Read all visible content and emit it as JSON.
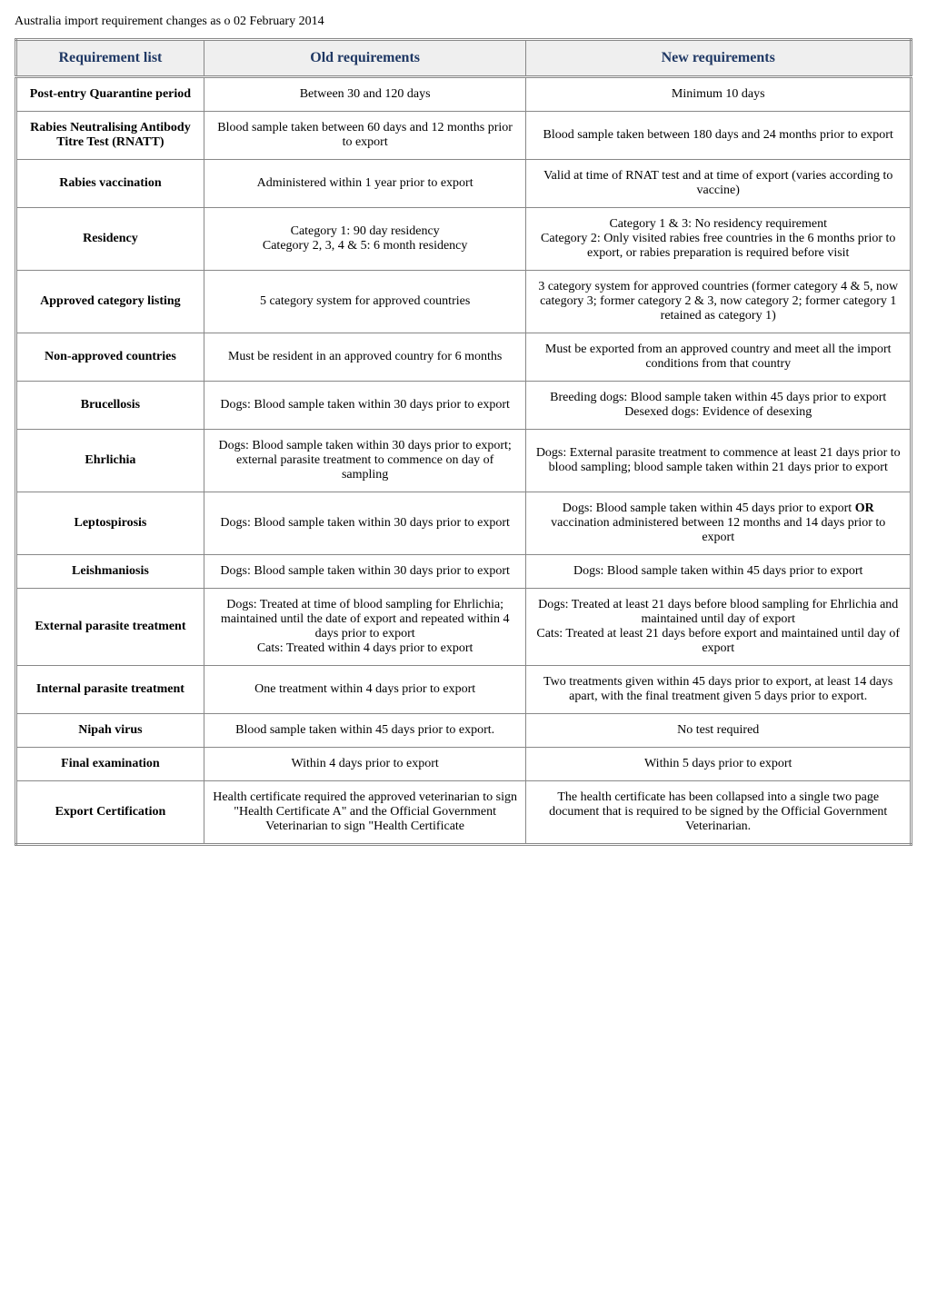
{
  "page_title": "Australia import requirement changes as o 02 February 2014",
  "columns": {
    "c0": "Requirement list",
    "c1": "Old requirements",
    "c2": "New requirements"
  },
  "rows": [
    {
      "name": "Post-entry Quarantine period",
      "old": "Between 30 and 120 days",
      "new": "Minimum 10 days"
    },
    {
      "name": "Rabies Neutralising Antibody Titre Test (RNATT)",
      "old": "Blood sample taken between 60 days and 12 months prior to export",
      "new": "Blood sample taken between 180 days and 24 months prior to export"
    },
    {
      "name": "Rabies vaccination",
      "old": "Administered within 1 year prior to export",
      "new": "Valid at time of RNAT test and at time of export (varies according to vaccine)"
    },
    {
      "name": "Residency",
      "old": "Category 1: 90 day residency\nCategory 2, 3, 4 & 5: 6 month residency",
      "new": "Category 1 & 3: No residency requirement\nCategory 2: Only visited rabies free countries in the 6 months prior to export, or rabies preparation is required before visit"
    },
    {
      "name": "Approved category listing",
      "old": "5 category system for approved countries ",
      "new": "3 category system for approved countries (former category 4 & 5, now category 3; former category 2 & 3, now category 2; former category 1 retained as category 1) "
    },
    {
      "name": "Non-approved countries",
      "old": "Must be resident in an approved country for 6 months",
      "new": "Must be exported from an approved country and meet all the import conditions from that country"
    },
    {
      "name": "Brucellosis",
      "old": "Dogs: Blood sample taken within 30 days prior to export",
      "new": "Breeding dogs: Blood sample taken within 45 days prior to export\nDesexed dogs: Evidence of desexing"
    },
    {
      "name": "Ehrlichia",
      "old": "Dogs: Blood sample taken within 30 days prior to export; external parasite treatment to commence on day of sampling",
      "new": "Dogs: External parasite treatment to commence at least 21 days prior to blood sampling; blood sample taken within 21 days prior to export"
    },
    {
      "name": "Leptospirosis",
      "old": "Dogs: Blood sample taken within 30 days prior to export",
      "new_pre": "Dogs: Blood sample taken within 45 days prior to export ",
      "new_bold": "OR",
      "new_post": " vaccination administered between 12 months and 14 days prior to export"
    },
    {
      "name": "Leishmaniosis",
      "old": "Dogs: Blood sample taken within 30 days prior to export",
      "new": "Dogs: Blood sample taken within 45 days prior to export"
    },
    {
      "name": "External parasite treatment",
      "old": "Dogs: Treated at time of blood sampling for Ehrlichia; maintained until the date of export and repeated within 4 days prior to export\nCats: Treated within 4 days prior to export",
      "new": "Dogs: Treated at least 21 days before blood sampling for Ehrlichia and maintained until day of export\nCats: Treated at least 21 days before export and maintained until day of export"
    },
    {
      "name": "Internal parasite treatment",
      "old": "One treatment within 4 days prior to export",
      "new": "Two treatments given within 45 days prior to export, at least 14 days apart, with the final treatment given 5 days prior to export."
    },
    {
      "name": "Nipah virus",
      "old": "Blood sample taken within 45 days prior to export.",
      "new": "No test required"
    },
    {
      "name": "Final examination",
      "old": "Within 4 days prior to export",
      "new": "Within 5 days prior to export"
    },
    {
      "name": "Export Certification",
      "old": "Health certificate required the approved veterinarian to sign \"Health Certificate A\" and the Official Government Veterinarian to sign \"Health Certificate",
      "new": "The health certificate has been collapsed into a single two page document that is required to be signed by the Official Government Veterinarian."
    }
  ]
}
